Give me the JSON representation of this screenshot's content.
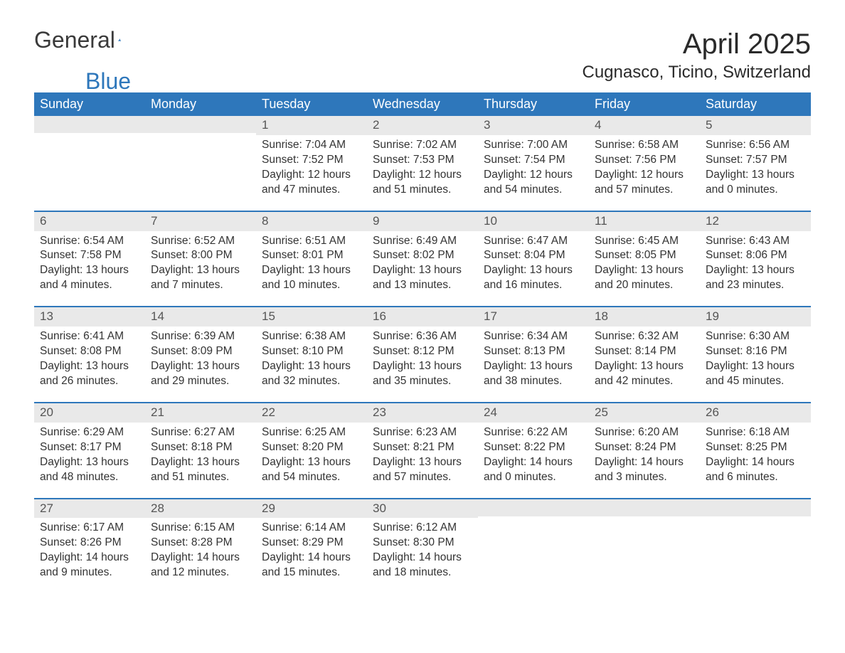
{
  "logo": {
    "general": "General",
    "blue": "Blue"
  },
  "title": "April 2025",
  "subtitle": "Cugnasco, Ticino, Switzerland",
  "colors": {
    "header_bg": "#2e77bb",
    "header_text": "#ffffff",
    "daynum_bg": "#e9e9e9",
    "row_border": "#2e77bb",
    "text": "#333333",
    "background": "#ffffff"
  },
  "typography": {
    "title_fontsize": 40,
    "subtitle_fontsize": 24,
    "header_fontsize": 18,
    "body_fontsize": 15.5,
    "font_family": "Segoe UI"
  },
  "weekdays": [
    "Sunday",
    "Monday",
    "Tuesday",
    "Wednesday",
    "Thursday",
    "Friday",
    "Saturday"
  ],
  "weeks": [
    [
      null,
      null,
      {
        "day": "1",
        "sunrise": "Sunrise: 7:04 AM",
        "sunset": "Sunset: 7:52 PM",
        "daylight1": "Daylight: 12 hours",
        "daylight2": "and 47 minutes."
      },
      {
        "day": "2",
        "sunrise": "Sunrise: 7:02 AM",
        "sunset": "Sunset: 7:53 PM",
        "daylight1": "Daylight: 12 hours",
        "daylight2": "and 51 minutes."
      },
      {
        "day": "3",
        "sunrise": "Sunrise: 7:00 AM",
        "sunset": "Sunset: 7:54 PM",
        "daylight1": "Daylight: 12 hours",
        "daylight2": "and 54 minutes."
      },
      {
        "day": "4",
        "sunrise": "Sunrise: 6:58 AM",
        "sunset": "Sunset: 7:56 PM",
        "daylight1": "Daylight: 12 hours",
        "daylight2": "and 57 minutes."
      },
      {
        "day": "5",
        "sunrise": "Sunrise: 6:56 AM",
        "sunset": "Sunset: 7:57 PM",
        "daylight1": "Daylight: 13 hours",
        "daylight2": "and 0 minutes."
      }
    ],
    [
      {
        "day": "6",
        "sunrise": "Sunrise: 6:54 AM",
        "sunset": "Sunset: 7:58 PM",
        "daylight1": "Daylight: 13 hours",
        "daylight2": "and 4 minutes."
      },
      {
        "day": "7",
        "sunrise": "Sunrise: 6:52 AM",
        "sunset": "Sunset: 8:00 PM",
        "daylight1": "Daylight: 13 hours",
        "daylight2": "and 7 minutes."
      },
      {
        "day": "8",
        "sunrise": "Sunrise: 6:51 AM",
        "sunset": "Sunset: 8:01 PM",
        "daylight1": "Daylight: 13 hours",
        "daylight2": "and 10 minutes."
      },
      {
        "day": "9",
        "sunrise": "Sunrise: 6:49 AM",
        "sunset": "Sunset: 8:02 PM",
        "daylight1": "Daylight: 13 hours",
        "daylight2": "and 13 minutes."
      },
      {
        "day": "10",
        "sunrise": "Sunrise: 6:47 AM",
        "sunset": "Sunset: 8:04 PM",
        "daylight1": "Daylight: 13 hours",
        "daylight2": "and 16 minutes."
      },
      {
        "day": "11",
        "sunrise": "Sunrise: 6:45 AM",
        "sunset": "Sunset: 8:05 PM",
        "daylight1": "Daylight: 13 hours",
        "daylight2": "and 20 minutes."
      },
      {
        "day": "12",
        "sunrise": "Sunrise: 6:43 AM",
        "sunset": "Sunset: 8:06 PM",
        "daylight1": "Daylight: 13 hours",
        "daylight2": "and 23 minutes."
      }
    ],
    [
      {
        "day": "13",
        "sunrise": "Sunrise: 6:41 AM",
        "sunset": "Sunset: 8:08 PM",
        "daylight1": "Daylight: 13 hours",
        "daylight2": "and 26 minutes."
      },
      {
        "day": "14",
        "sunrise": "Sunrise: 6:39 AM",
        "sunset": "Sunset: 8:09 PM",
        "daylight1": "Daylight: 13 hours",
        "daylight2": "and 29 minutes."
      },
      {
        "day": "15",
        "sunrise": "Sunrise: 6:38 AM",
        "sunset": "Sunset: 8:10 PM",
        "daylight1": "Daylight: 13 hours",
        "daylight2": "and 32 minutes."
      },
      {
        "day": "16",
        "sunrise": "Sunrise: 6:36 AM",
        "sunset": "Sunset: 8:12 PM",
        "daylight1": "Daylight: 13 hours",
        "daylight2": "and 35 minutes."
      },
      {
        "day": "17",
        "sunrise": "Sunrise: 6:34 AM",
        "sunset": "Sunset: 8:13 PM",
        "daylight1": "Daylight: 13 hours",
        "daylight2": "and 38 minutes."
      },
      {
        "day": "18",
        "sunrise": "Sunrise: 6:32 AM",
        "sunset": "Sunset: 8:14 PM",
        "daylight1": "Daylight: 13 hours",
        "daylight2": "and 42 minutes."
      },
      {
        "day": "19",
        "sunrise": "Sunrise: 6:30 AM",
        "sunset": "Sunset: 8:16 PM",
        "daylight1": "Daylight: 13 hours",
        "daylight2": "and 45 minutes."
      }
    ],
    [
      {
        "day": "20",
        "sunrise": "Sunrise: 6:29 AM",
        "sunset": "Sunset: 8:17 PM",
        "daylight1": "Daylight: 13 hours",
        "daylight2": "and 48 minutes."
      },
      {
        "day": "21",
        "sunrise": "Sunrise: 6:27 AM",
        "sunset": "Sunset: 8:18 PM",
        "daylight1": "Daylight: 13 hours",
        "daylight2": "and 51 minutes."
      },
      {
        "day": "22",
        "sunrise": "Sunrise: 6:25 AM",
        "sunset": "Sunset: 8:20 PM",
        "daylight1": "Daylight: 13 hours",
        "daylight2": "and 54 minutes."
      },
      {
        "day": "23",
        "sunrise": "Sunrise: 6:23 AM",
        "sunset": "Sunset: 8:21 PM",
        "daylight1": "Daylight: 13 hours",
        "daylight2": "and 57 minutes."
      },
      {
        "day": "24",
        "sunrise": "Sunrise: 6:22 AM",
        "sunset": "Sunset: 8:22 PM",
        "daylight1": "Daylight: 14 hours",
        "daylight2": "and 0 minutes."
      },
      {
        "day": "25",
        "sunrise": "Sunrise: 6:20 AM",
        "sunset": "Sunset: 8:24 PM",
        "daylight1": "Daylight: 14 hours",
        "daylight2": "and 3 minutes."
      },
      {
        "day": "26",
        "sunrise": "Sunrise: 6:18 AM",
        "sunset": "Sunset: 8:25 PM",
        "daylight1": "Daylight: 14 hours",
        "daylight2": "and 6 minutes."
      }
    ],
    [
      {
        "day": "27",
        "sunrise": "Sunrise: 6:17 AM",
        "sunset": "Sunset: 8:26 PM",
        "daylight1": "Daylight: 14 hours",
        "daylight2": "and 9 minutes."
      },
      {
        "day": "28",
        "sunrise": "Sunrise: 6:15 AM",
        "sunset": "Sunset: 8:28 PM",
        "daylight1": "Daylight: 14 hours",
        "daylight2": "and 12 minutes."
      },
      {
        "day": "29",
        "sunrise": "Sunrise: 6:14 AM",
        "sunset": "Sunset: 8:29 PM",
        "daylight1": "Daylight: 14 hours",
        "daylight2": "and 15 minutes."
      },
      {
        "day": "30",
        "sunrise": "Sunrise: 6:12 AM",
        "sunset": "Sunset: 8:30 PM",
        "daylight1": "Daylight: 14 hours",
        "daylight2": "and 18 minutes."
      },
      null,
      null,
      null
    ]
  ]
}
